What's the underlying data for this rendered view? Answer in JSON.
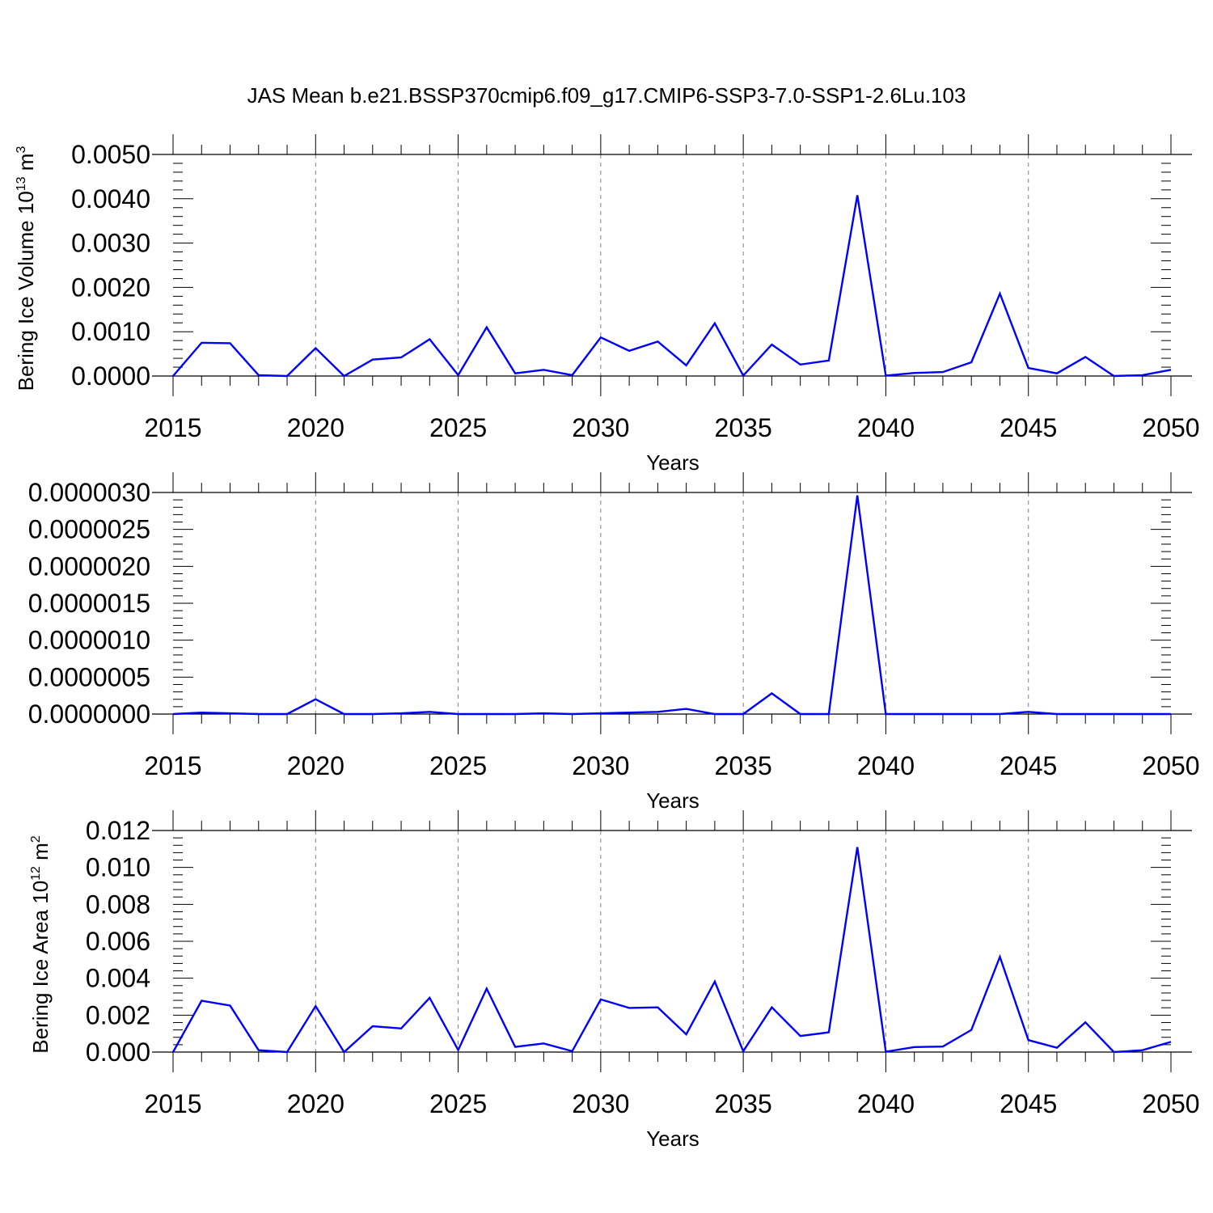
{
  "title": "JAS Mean b.e21.BSSP370cmip6.f09_g17.CMIP6-SSP3-7.0-SSP1-2.6Lu.103",
  "colors": {
    "line": "#0000ff",
    "axis": "#000000",
    "grid": "#808080"
  },
  "chart_data": [
    {
      "type": "line",
      "xlabel": "Years",
      "ylabel_parts": [
        "Bering Ice Volume 10",
        "13",
        " m",
        "3"
      ],
      "xlim": [
        2015,
        2050
      ],
      "ylim": [
        0,
        0.005
      ],
      "xticks": [
        "2015",
        "2020",
        "2025",
        "2030",
        "2035",
        "2040",
        "2045",
        "2050"
      ],
      "yticks": [
        "0.0000",
        "0.0010",
        "0.0020",
        "0.0030",
        "0.0040",
        "0.0050"
      ],
      "grid": "vertical dashed at major x ticks",
      "x": [
        2015,
        2016,
        2017,
        2018,
        2019,
        2020,
        2021,
        2022,
        2023,
        2024,
        2025,
        2026,
        2027,
        2028,
        2029,
        2030,
        2031,
        2032,
        2033,
        2034,
        2035,
        2036,
        2037,
        2038,
        2039,
        2040,
        2041,
        2042,
        2043,
        2044,
        2045,
        2046,
        2047,
        2048,
        2049,
        2050
      ],
      "y": [
        0.0,
        0.00075,
        0.00074,
        2e-05,
        0.0,
        0.00063,
        0.0,
        0.00037,
        0.00042,
        0.00083,
        2e-05,
        0.0011,
        6e-05,
        0.00014,
        2e-05,
        0.00087,
        0.00057,
        0.00078,
        0.00024,
        0.00119,
        1e-05,
        0.00071,
        0.00026,
        0.00035,
        0.00408,
        1e-05,
        7e-05,
        9e-05,
        0.00031,
        0.00186,
        0.00018,
        6e-05,
        0.00043,
        0.0,
        2e-05,
        0.00014
      ]
    },
    {
      "type": "line",
      "xlabel": "Years",
      "ylabel_parts": [],
      "xlim": [
        2015,
        2050
      ],
      "ylim": [
        0,
        3e-06
      ],
      "xticks": [
        "2015",
        "2020",
        "2025",
        "2030",
        "2035",
        "2040",
        "2045",
        "2050"
      ],
      "yticks": [
        "0.0000000",
        "0.0000005",
        "0.0000010",
        "0.0000015",
        "0.0000020",
        "0.0000025",
        "0.0000030"
      ],
      "grid": "vertical dashed at major x ticks",
      "x": [
        2015,
        2016,
        2017,
        2018,
        2019,
        2020,
        2021,
        2022,
        2023,
        2024,
        2025,
        2026,
        2027,
        2028,
        2029,
        2030,
        2031,
        2032,
        2033,
        2034,
        2035,
        2036,
        2037,
        2038,
        2039,
        2040,
        2041,
        2042,
        2043,
        2044,
        2045,
        2046,
        2047,
        2048,
        2049,
        2050
      ],
      "y": [
        0.0,
        2e-08,
        1e-08,
        0.0,
        0.0,
        2e-07,
        0.0,
        0.0,
        1e-08,
        3e-08,
        0.0,
        0.0,
        0.0,
        1e-08,
        0.0,
        1e-08,
        2e-08,
        3e-08,
        7e-08,
        0.0,
        0.0,
        2.8e-07,
        0.0,
        0.0,
        2.96e-06,
        0.0,
        0.0,
        0.0,
        0.0,
        0.0,
        3e-08,
        0.0,
        0.0,
        0.0,
        0.0,
        0.0
      ]
    },
    {
      "type": "line",
      "xlabel": "Years",
      "ylabel_parts": [
        "Bering Ice Area 10",
        "12",
        " m",
        "2"
      ],
      "xlim": [
        2015,
        2050
      ],
      "ylim": [
        0,
        0.012
      ],
      "xticks": [
        "2015",
        "2020",
        "2025",
        "2030",
        "2035",
        "2040",
        "2045",
        "2050"
      ],
      "yticks": [
        "0.000",
        "0.002",
        "0.004",
        "0.006",
        "0.008",
        "0.010",
        "0.012"
      ],
      "grid": "vertical dashed at major x ticks",
      "x": [
        2015,
        2016,
        2017,
        2018,
        2019,
        2020,
        2021,
        2022,
        2023,
        2024,
        2025,
        2026,
        2027,
        2028,
        2029,
        2030,
        2031,
        2032,
        2033,
        2034,
        2035,
        2036,
        2037,
        2038,
        2039,
        2040,
        2041,
        2042,
        2043,
        2044,
        2045,
        2046,
        2047,
        2048,
        2049,
        2050
      ],
      "y": [
        0.0,
        0.00278,
        0.00252,
        0.0001,
        0.0,
        0.00249,
        0.0,
        0.0014,
        0.00128,
        0.00294,
        0.00011,
        0.00344,
        0.00028,
        0.00047,
        5e-05,
        0.00285,
        0.00239,
        0.00242,
        0.00096,
        0.00382,
        5e-05,
        0.00242,
        0.00087,
        0.00107,
        0.0111,
        2e-05,
        0.00027,
        0.0003,
        0.0012,
        0.00516,
        0.00065,
        0.00023,
        0.00161,
        0.0,
        0.0001,
        0.00055
      ]
    }
  ]
}
